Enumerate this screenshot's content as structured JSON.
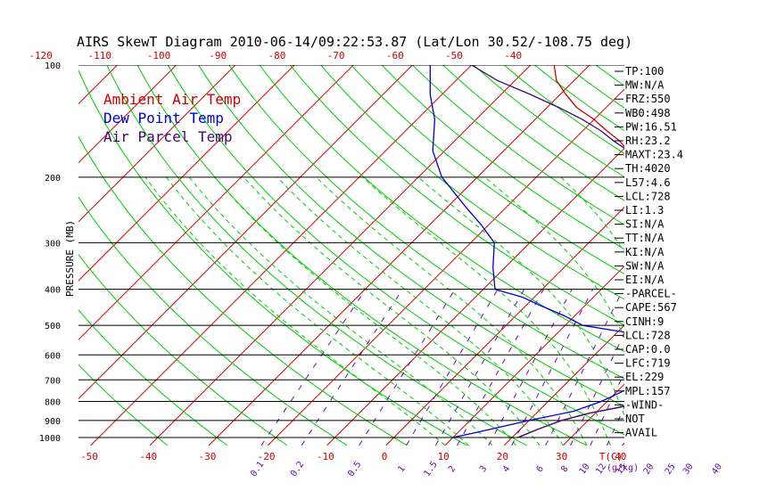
{
  "chart_data": {
    "type": "line",
    "title": "AIRS SkewT Diagram 2010-06-14/09:22:53.87 (Lat/Lon 30.52/-108.75 deg)",
    "ylabel": "PRESSURE (MB)",
    "y_scale": "log",
    "ylim": [
      1000,
      100
    ],
    "pressure_ticks": [
      "100",
      "200",
      "300",
      "400",
      "500",
      "600",
      "700",
      "800",
      "900",
      "1000"
    ],
    "top_temp_ticks": [
      "-120",
      "-110",
      "-100",
      "-90",
      "-80",
      "-70",
      "-60",
      "-50",
      "-40"
    ],
    "bottom_temp_ticks": [
      "-50",
      "-40",
      "-30",
      "-20",
      "-10",
      "0",
      "10",
      "20",
      "30",
      "40"
    ],
    "bottom_unit": "T(C)",
    "mixing_ratio_ticks": [
      "0.1",
      "0.2",
      "0.5",
      "1",
      "1.5",
      "2",
      "3",
      "4",
      "6",
      "8",
      "10",
      "12",
      "15",
      "20",
      "25",
      "30",
      "40"
    ],
    "mixing_ratio_unit": "(g/kg)",
    "legend": [
      {
        "label": "Ambient Air Temp",
        "color": "#cc0000"
      },
      {
        "label": "Dew Point Temp",
        "color": "#0000cc"
      },
      {
        "label": "Air Parcel Temp",
        "color": "#3b0a6e"
      }
    ],
    "series": [
      {
        "name": "Ambient Air Temp",
        "color": "#cc0000",
        "points": [
          [
            1000,
            1
          ],
          [
            950,
            3
          ],
          [
            900,
            5.5
          ],
          [
            860,
            9
          ],
          [
            830,
            13
          ],
          [
            800,
            17
          ],
          [
            780,
            19
          ],
          [
            760,
            20
          ],
          [
            740,
            21
          ],
          [
            720,
            21.5
          ],
          [
            700,
            22
          ],
          [
            680,
            22.5
          ],
          [
            650,
            23.5
          ],
          [
            600,
            24.3
          ],
          [
            570,
            24.2
          ],
          [
            550,
            23.5
          ],
          [
            520,
            22.5
          ],
          [
            500,
            21.5
          ],
          [
            470,
            20
          ],
          [
            450,
            19.5
          ],
          [
            420,
            19
          ],
          [
            400,
            16
          ],
          [
            360,
            10
          ],
          [
            320,
            6
          ],
          [
            300,
            0
          ],
          [
            260,
            -6
          ],
          [
            230,
            -10
          ],
          [
            215,
            -14
          ],
          [
            200,
            -20
          ],
          [
            180,
            -26
          ],
          [
            160,
            -32
          ],
          [
            150,
            -36
          ],
          [
            140,
            -40
          ],
          [
            130,
            -45
          ],
          [
            120,
            -49
          ],
          [
            110,
            -53
          ],
          [
            100,
            -56
          ]
        ]
      },
      {
        "name": "Dew Point Temp",
        "color": "#0000cc",
        "points": [
          [
            1000,
            -10
          ],
          [
            970,
            -7
          ],
          [
            930,
            -3
          ],
          [
            900,
            0
          ],
          [
            850,
            6
          ],
          [
            800,
            9
          ],
          [
            750,
            11
          ],
          [
            700,
            13
          ],
          [
            650,
            14
          ],
          [
            600,
            13
          ],
          [
            570,
            10
          ],
          [
            540,
            8
          ],
          [
            500,
            -7
          ],
          [
            470,
            -12
          ],
          [
            440,
            -18
          ],
          [
            420,
            -22
          ],
          [
            400,
            -28
          ],
          [
            350,
            -32
          ],
          [
            300,
            -36
          ],
          [
            270,
            -41
          ],
          [
            240,
            -47
          ],
          [
            200,
            -56
          ],
          [
            170,
            -62
          ],
          [
            140,
            -67
          ],
          [
            120,
            -72
          ],
          [
            100,
            -77
          ]
        ]
      },
      {
        "name": "Air Parcel Temp",
        "color": "#3b0a6e",
        "points": [
          [
            1000,
            1
          ],
          [
            950,
            3
          ],
          [
            900,
            5.5
          ],
          [
            860,
            9
          ],
          [
            830,
            13
          ],
          [
            800,
            17
          ],
          [
            780,
            19
          ],
          [
            760,
            20
          ],
          [
            740,
            21
          ],
          [
            720,
            21.5
          ],
          [
            700,
            21
          ],
          [
            650,
            20.5
          ],
          [
            600,
            20
          ],
          [
            550,
            19.5
          ],
          [
            500,
            19
          ],
          [
            450,
            19
          ],
          [
            400,
            17
          ],
          [
            350,
            13
          ],
          [
            300,
            7
          ],
          [
            250,
            -3
          ],
          [
            215,
            -13
          ],
          [
            200,
            -18
          ],
          [
            180,
            -25
          ],
          [
            160,
            -33
          ],
          [
            150,
            -37
          ],
          [
            140,
            -42
          ],
          [
            130,
            -48
          ],
          [
            120,
            -55
          ],
          [
            110,
            -63
          ],
          [
            100,
            -70
          ]
        ]
      }
    ]
  },
  "side_panel": [
    "TP:100",
    "MW:N/A",
    "FRZ:550",
    "WB0:498",
    "PW:16.51",
    "RH:23.2",
    "MAXT:23.4",
    "TH:4020",
    "L57:4.6",
    "LCL:728",
    "LI:1.3",
    "SI:N/A",
    "TT:N/A",
    "KI:N/A",
    "SW:N/A",
    "EI:N/A",
    "-PARCEL-",
    "CAPE:567",
    "CINH:9",
    "LCL:728",
    "CAP:0.0",
    "LFC:719",
    "EL:229",
    "MPL:157",
    "-WIND-",
    "NOT",
    "AVAIL"
  ],
  "colors": {
    "isotherm": "#cc0000",
    "dry_adiabat": "#00cc00",
    "moist_adiabat": "#00cc00",
    "mixing_ratio": "#6a0dad",
    "isobar": "#000000"
  }
}
